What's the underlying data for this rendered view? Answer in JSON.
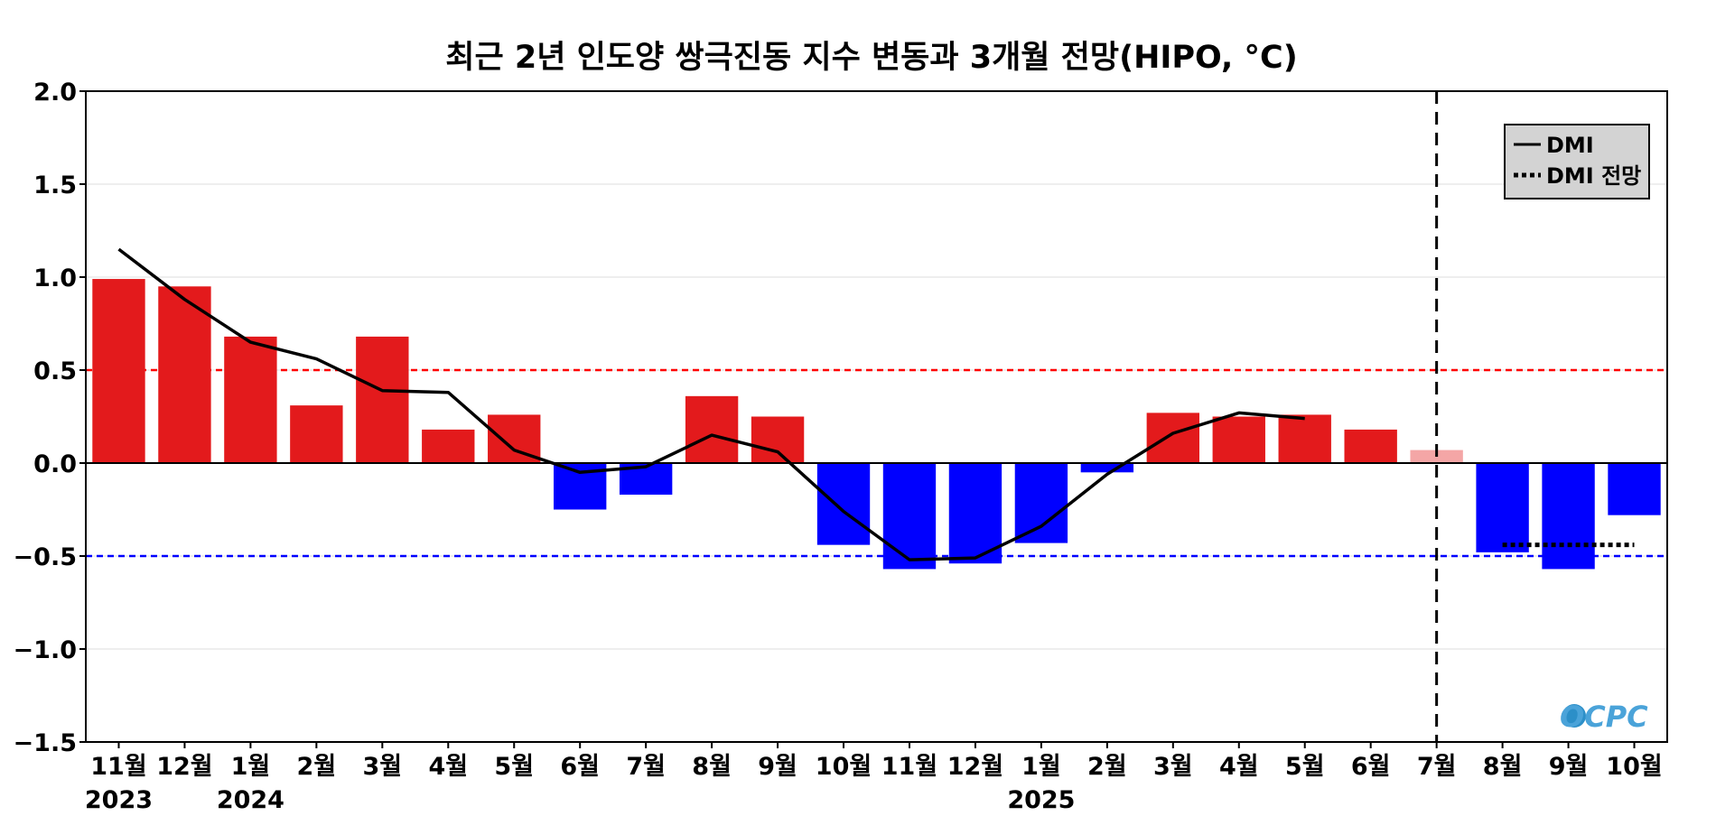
{
  "chart_data": {
    "type": "bar",
    "title": "최근 2년 인도양 쌍극진동 지수 변동과 3개월 전망(HIPO, °C)",
    "categories": [
      "11월",
      "12월",
      "1월",
      "2월",
      "3월",
      "4월",
      "5월",
      "6월",
      "7월",
      "8월",
      "9월",
      "10월",
      "11월",
      "12월",
      "1월",
      "2월",
      "3월",
      "4월",
      "5월",
      "6월",
      "7월",
      "8월",
      "9월",
      "10월"
    ],
    "year_labels": [
      {
        "index": 0,
        "label": "2023"
      },
      {
        "index": 2,
        "label": "2024"
      },
      {
        "index": 14,
        "label": "2025"
      }
    ],
    "series": [
      {
        "type": "bar",
        "values": [
          0.99,
          0.95,
          0.68,
          0.31,
          0.68,
          0.18,
          0.26,
          -0.25,
          -0.17,
          0.36,
          0.25,
          -0.44,
          -0.57,
          -0.54,
          -0.43,
          -0.05,
          0.27,
          0.25,
          0.26,
          0.18,
          0.07,
          -0.48,
          -0.57,
          -0.28
        ]
      },
      {
        "name": "DMI",
        "type": "line",
        "style": "solid",
        "values": [
          1.15,
          0.88,
          0.65,
          0.56,
          0.39,
          0.38,
          0.07,
          -0.05,
          -0.02,
          0.15,
          0.06,
          -0.26,
          -0.52,
          -0.51,
          -0.34,
          -0.06,
          0.16,
          0.27,
          0.24,
          null,
          null,
          null,
          null,
          null
        ]
      },
      {
        "name": "DMI 전망",
        "type": "line",
        "style": "dotted",
        "values": [
          null,
          null,
          null,
          null,
          null,
          null,
          null,
          null,
          null,
          null,
          null,
          null,
          null,
          null,
          null,
          null,
          null,
          null,
          null,
          null,
          null,
          -0.44,
          -0.44,
          -0.44
        ]
      }
    ],
    "ylim": [
      -1.5,
      2.0
    ],
    "yticks": [
      -1.5,
      -1.0,
      -0.5,
      0.0,
      0.5,
      1.0,
      1.5,
      2.0
    ],
    "thresholds": [
      {
        "value": 0.5,
        "color": "#ff0000",
        "style": "dashed"
      },
      {
        "value": -0.5,
        "color": "#0000ff",
        "style": "dashed"
      }
    ],
    "forecast_start_index": 20,
    "forecast_divider_index": 20,
    "grid": "horizontal",
    "legend_position": "top-right",
    "colors": {
      "positive": "#e31a1c",
      "negative": "#0000ff",
      "current_month": "#f4a6a6",
      "line": "#000000",
      "grid": "#dddddd",
      "legend_bg": "#d3d3d3",
      "threshold_pos": "#ff0000",
      "threshold_neg": "#0000ff"
    },
    "logo_text": "OCPC"
  }
}
